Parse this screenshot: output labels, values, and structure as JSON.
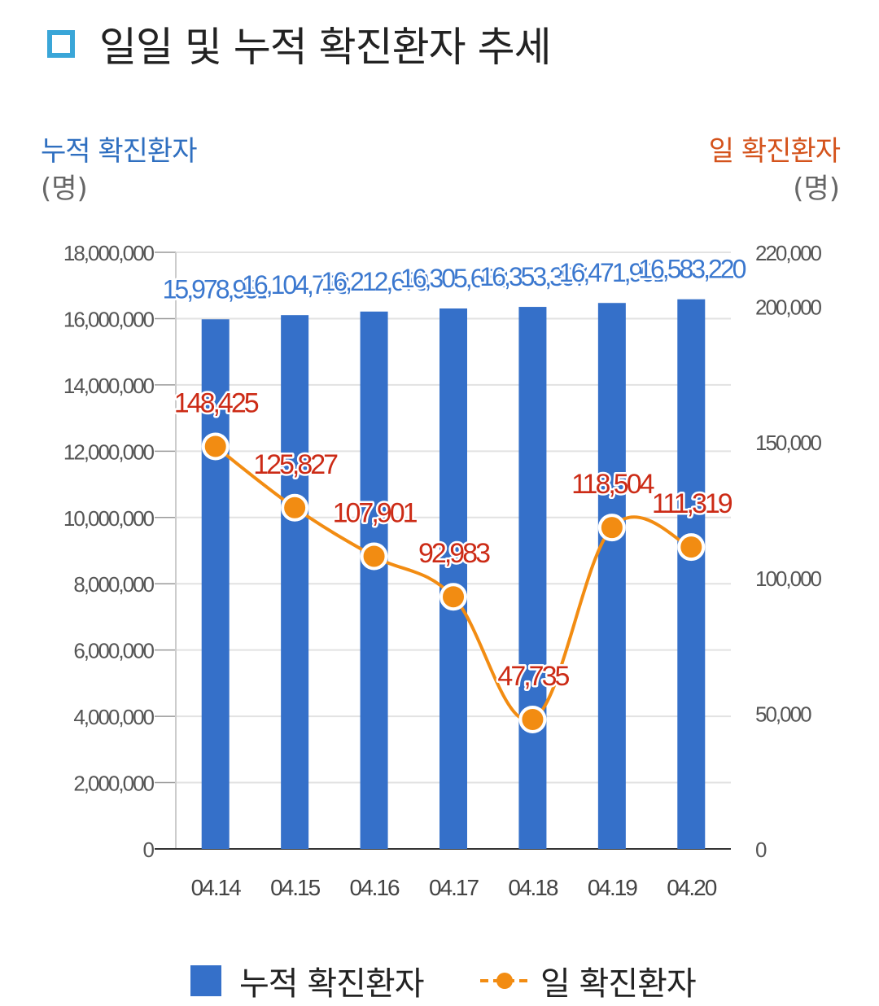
{
  "title": "일일 및 누적 확진환자 추세",
  "left_axis": {
    "title": "누적 확진환자",
    "unit": "(명)",
    "color": "#2f6fc0"
  },
  "right_axis": {
    "title": "일 확진환자",
    "unit": "(명)",
    "color": "#d4531c"
  },
  "legend": {
    "bar_label": "누적 확진환자",
    "line_label": "일 확진환자"
  },
  "colors": {
    "bar": "#3570c9",
    "bar_label": "#3b78cf",
    "line": "#f28c12",
    "line_label": "#cc2b16",
    "grid": "#e2e2e2",
    "tick": "#555555"
  },
  "chart_data": {
    "type": "bar",
    "categories": [
      "04.14",
      "04.15",
      "04.16",
      "04.17",
      "04.18",
      "04.19",
      "04.20"
    ],
    "series": [
      {
        "name": "누적 확진환자",
        "type": "bar",
        "axis": "left",
        "values": [
          15978951,
          16104778,
          16212679,
          16305662,
          16353397,
          16471901,
          16583220
        ],
        "labels": [
          "15,978,951",
          "16,104,778",
          "16,212,679",
          "16,305,662",
          "16,353,397",
          "16,471,901",
          "16,583,220"
        ]
      },
      {
        "name": "일 확진환자",
        "type": "line",
        "axis": "right",
        "values": [
          148425,
          125827,
          107901,
          92983,
          47735,
          118504,
          111319
        ],
        "labels": [
          "148,425",
          "125,827",
          "107,901",
          "92,983",
          "47,735",
          "118,504",
          "111,319"
        ]
      }
    ],
    "left_ylim": [
      0,
      18000000
    ],
    "left_ticks": [
      "0",
      "2,000,000",
      "4,000,000",
      "6,000,000",
      "8,000,000",
      "10,000,000",
      "12,000,000",
      "14,000,000",
      "16,000,000",
      "18,000,000"
    ],
    "right_ylim": [
      0,
      220000
    ],
    "right_ticks": [
      "0",
      "50,000",
      "100,000",
      "150,000",
      "200,000",
      "220,000"
    ],
    "grid": true,
    "legend_position": "bottom"
  }
}
